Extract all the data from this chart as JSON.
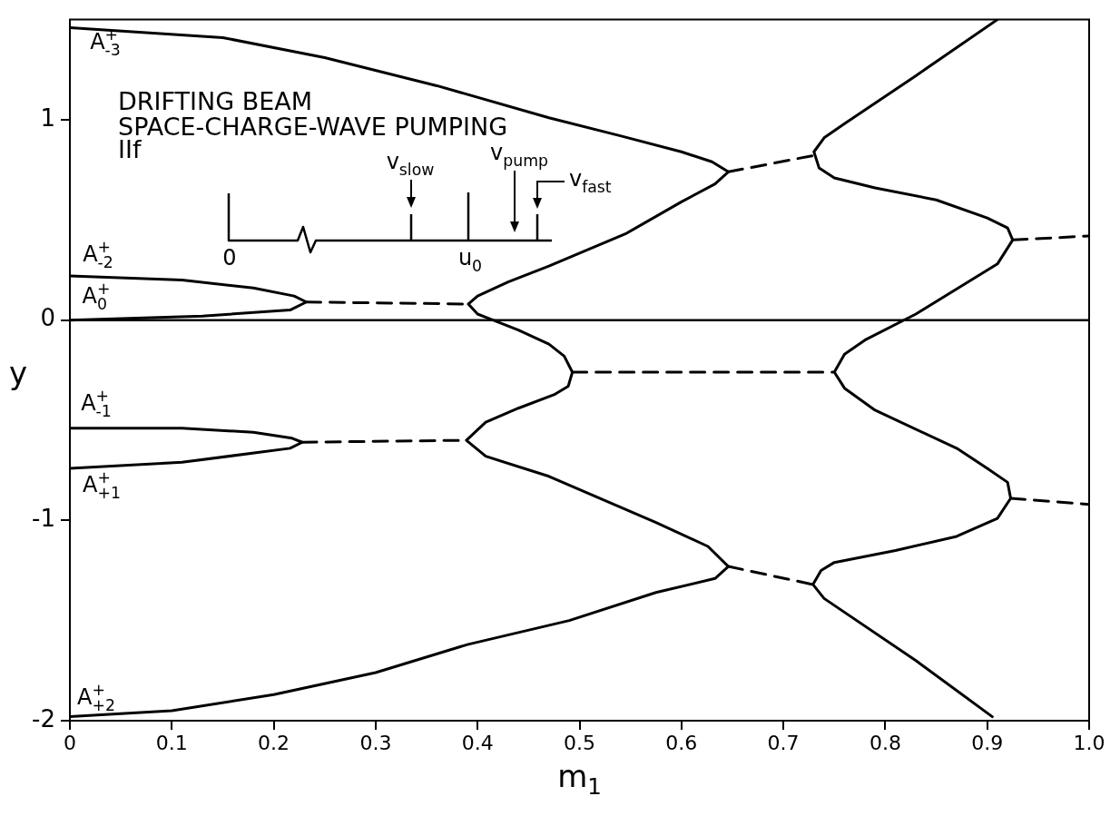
{
  "chart_data": {
    "type": "line",
    "xlabel": "m$_{1}$",
    "ylabel": "y",
    "xlim": [
      0,
      1
    ],
    "ylim": [
      -2,
      1.5
    ],
    "xticks": [
      0,
      0.1,
      0.2,
      0.3,
      0.4,
      0.5,
      0.6,
      0.7,
      0.8,
      0.9,
      {
        "value": 1,
        "label": "1.0"
      }
    ],
    "yticks": [
      -2,
      -1,
      0,
      1
    ],
    "marker": "none",
    "ref_lines": [
      {
        "axis": "y",
        "value": 0,
        "color": "#000000"
      }
    ],
    "series": [
      {
        "type": "line",
        "line_style": "solid",
        "color": "#000000",
        "x": [
          0,
          0.15,
          0.25,
          0.36,
          0.47,
          0.54,
          0.6,
          0.63,
          0.646,
          0.633,
          0.6,
          0.545,
          0.47,
          0.43,
          0.4,
          0.391,
          0.4,
          0.41,
          0.44,
          0.47,
          0.485,
          0.493,
          0.489,
          0.476,
          0.44,
          0.408,
          0.389,
          0.408,
          0.47,
          0.575,
          0.626,
          0.646,
          0.633,
          0.575,
          0.49,
          0.39,
          0.3,
          0.2,
          0.1,
          0
        ],
        "values": [
          1.46,
          1.41,
          1.31,
          1.17,
          1.01,
          0.92,
          0.84,
          0.79,
          0.74,
          0.68,
          0.59,
          0.43,
          0.27,
          0.19,
          0.12,
          0.08,
          0.03,
          0.01,
          -0.05,
          -0.12,
          -0.18,
          -0.26,
          -0.33,
          -0.37,
          -0.44,
          -0.51,
          -0.6,
          -0.68,
          -0.78,
          -1.01,
          -1.13,
          -1.23,
          -1.29,
          -1.36,
          -1.5,
          -1.62,
          -1.76,
          -1.87,
          -1.95,
          -1.98
        ]
      },
      {
        "type": "line",
        "line_style": "solid",
        "color": "#000000",
        "x": [
          0,
          0.11,
          0.18,
          0.22,
          0.232,
          0.216,
          0.13,
          0
        ],
        "values": [
          0.22,
          0.2,
          0.16,
          0.12,
          0.09,
          0.05,
          0.02,
          0
        ]
      },
      {
        "type": "line",
        "line_style": "solid",
        "color": "#000000",
        "x": [
          0,
          0.11,
          0.18,
          0.218,
          0.228,
          0.216,
          0.11,
          0
        ],
        "values": [
          -0.54,
          -0.54,
          -0.56,
          -0.59,
          -0.61,
          -0.64,
          -0.71,
          -0.74
        ]
      },
      {
        "type": "line",
        "line_style": "solid",
        "color": "#000000",
        "x": [
          0.91,
          0.83,
          0.76,
          0.74,
          0.73,
          0.735,
          0.75,
          0.79,
          0.85,
          0.9,
          0.92,
          0.925,
          0.91,
          0.83,
          0.78,
          0.76,
          0.75,
          0.76,
          0.79,
          0.87,
          0.9,
          0.92,
          0.923,
          0.91,
          0.87,
          0.81,
          0.75,
          0.737,
          0.729,
          0.74,
          0.83,
          0.905
        ],
        "values": [
          1.5,
          1.22,
          0.98,
          0.91,
          0.84,
          0.76,
          0.71,
          0.66,
          0.6,
          0.51,
          0.46,
          0.4,
          0.28,
          0.03,
          -0.1,
          -0.17,
          -0.26,
          -0.34,
          -0.45,
          -0.64,
          -0.74,
          -0.81,
          -0.89,
          -0.99,
          -1.08,
          -1.15,
          -1.21,
          -1.25,
          -1.32,
          -1.39,
          -1.7,
          -1.98
        ]
      },
      {
        "type": "line",
        "line_style": "dashed",
        "color": "#000000",
        "x": [
          0.232,
          0.391
        ],
        "values": [
          0.09,
          0.08
        ]
      },
      {
        "type": "line",
        "line_style": "dashed",
        "color": "#000000",
        "x": [
          0.228,
          0.389
        ],
        "values": [
          -0.61,
          -0.6
        ]
      },
      {
        "type": "line",
        "line_style": "dashed",
        "color": "#000000",
        "x": [
          0.646,
          0.728
        ],
        "values": [
          0.74,
          0.82
        ]
      },
      {
        "type": "line",
        "line_style": "dashed",
        "color": "#000000",
        "x": [
          0.493,
          0.749
        ],
        "values": [
          -0.26,
          -0.26
        ]
      },
      {
        "type": "line",
        "line_style": "dashed",
        "color": "#000000",
        "x": [
          0.646,
          0.729
        ],
        "values": [
          -1.23,
          -1.32
        ]
      },
      {
        "type": "line",
        "line_style": "dashed",
        "color": "#000000",
        "x": [
          0.925,
          1
        ],
        "values": [
          0.4,
          0.42
        ]
      },
      {
        "type": "line",
        "line_style": "dashed",
        "color": "#000000",
        "x": [
          0.923,
          1
        ],
        "values": [
          -0.89,
          -0.92
        ]
      }
    ],
    "annotations": [
      "A$^{+}$$_{-3}$",
      "A$^{+}$$_{-2}$",
      "A$^{+}$$_{0}$",
      "A$^{+}$$_{-1}$",
      "A$^{+}$$_{+1}$",
      "A$^{+}$$_{+2}$",
      "DRIFTING BEAM",
      "SPACE-CHARGE-WAVE PUMPING",
      "IIf",
      "0",
      "u$_{0}$",
      "v$_{slow}$",
      "v$_{pump}$",
      "v$_{fast}$"
    ]
  }
}
